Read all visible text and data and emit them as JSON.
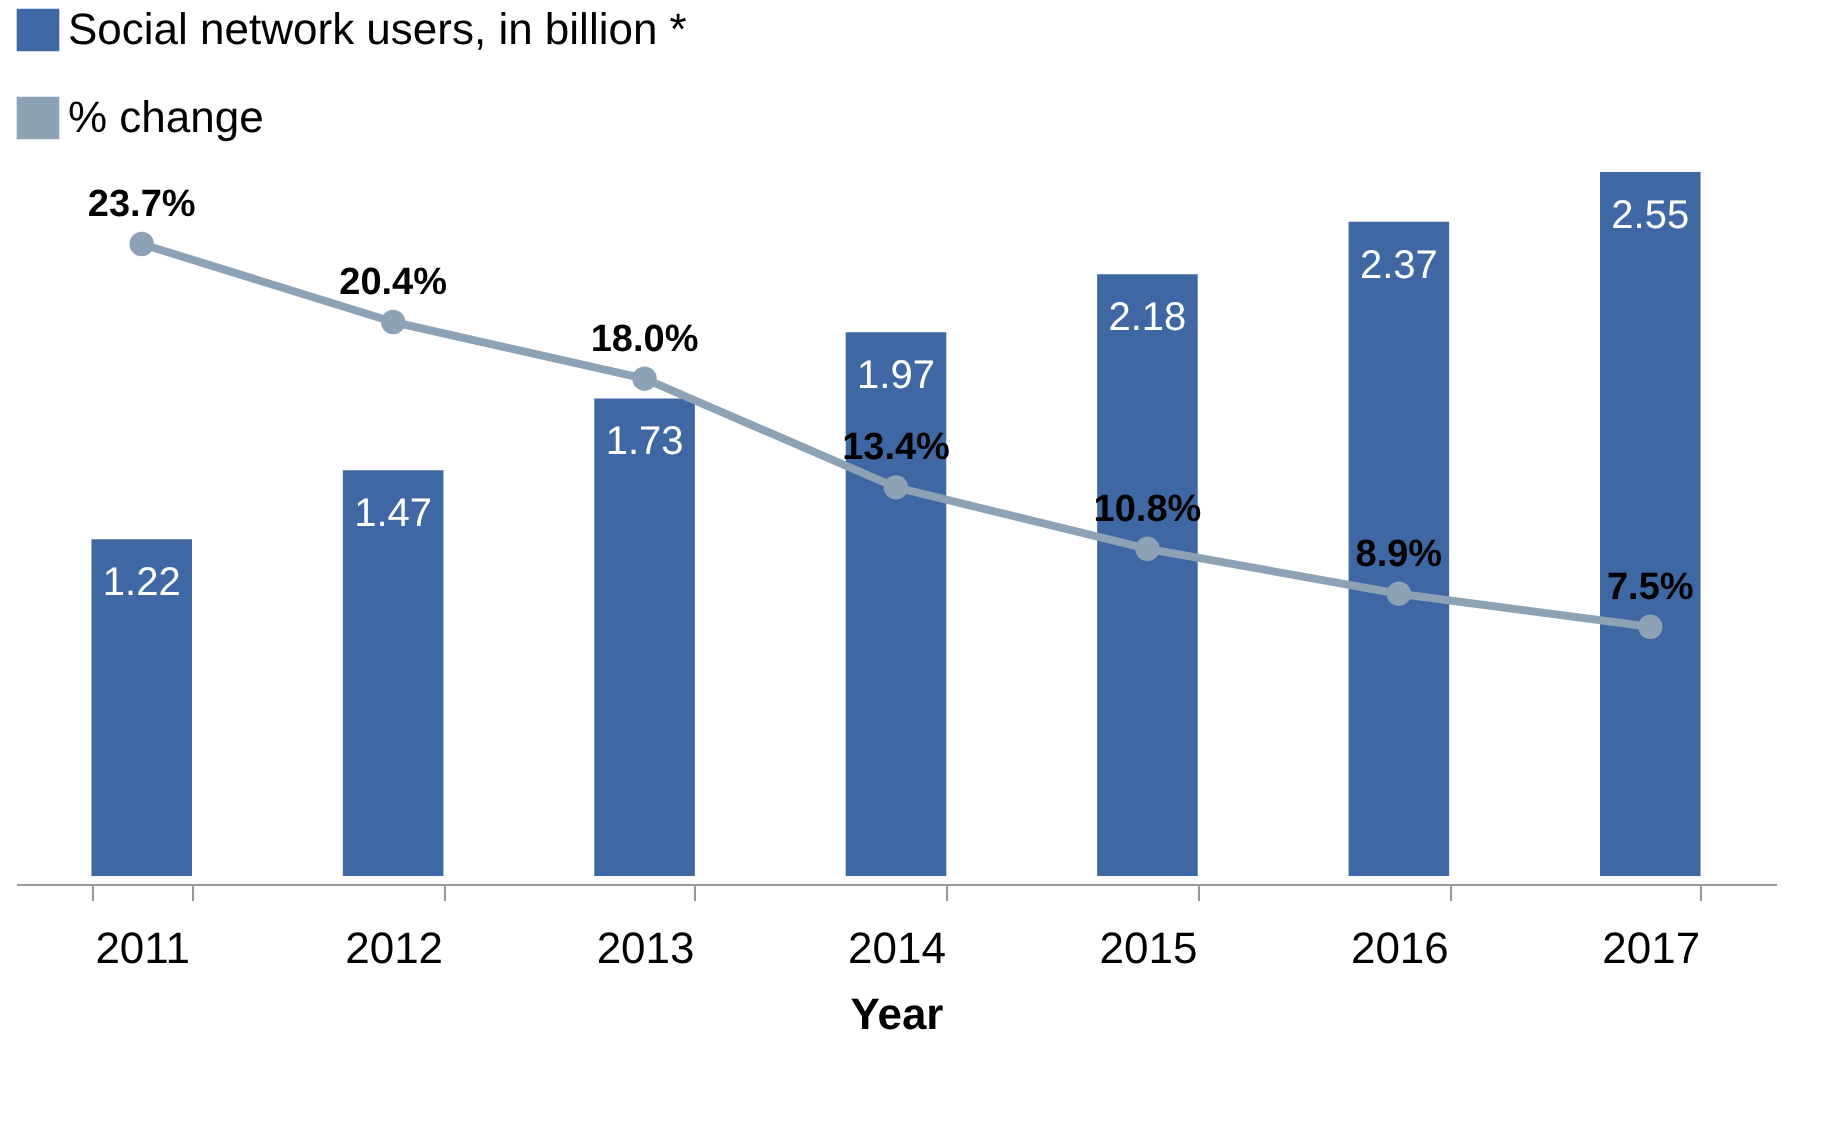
{
  "chart_data": {
    "type": "bar",
    "xlabel": "Year",
    "categories": [
      "2011",
      "2012",
      "2013",
      "2014",
      "2015",
      "2016",
      "2017"
    ],
    "series": [
      {
        "name": "Social network users, in billion *",
        "color": "#3f67a3",
        "values": [
          1.22,
          1.47,
          1.73,
          1.97,
          2.18,
          2.37,
          2.55
        ],
        "value_labels": [
          "1.22",
          "1.47",
          "1.73",
          "1.97",
          "2.18",
          "2.37",
          "2.55"
        ]
      },
      {
        "name": "% change",
        "type": "line",
        "axis": "y2",
        "color": "#8da2b4",
        "marker": "circle",
        "values": [
          23.7,
          20.4,
          18.0,
          13.4,
          10.8,
          8.9,
          7.5
        ],
        "value_labels": [
          "23.7%",
          "20.4%",
          "18.0%",
          "13.4%",
          "10.8%",
          "8.9%",
          "7.5%"
        ]
      }
    ],
    "legend": "top left"
  }
}
